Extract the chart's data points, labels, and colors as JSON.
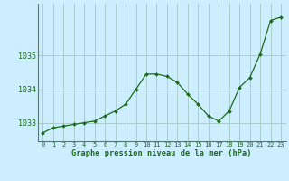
{
  "x": [
    0,
    1,
    2,
    3,
    4,
    5,
    6,
    7,
    8,
    9,
    10,
    11,
    12,
    13,
    14,
    15,
    16,
    17,
    18,
    19,
    20,
    21,
    22,
    23
  ],
  "y": [
    1032.7,
    1032.85,
    1032.9,
    1032.95,
    1033.0,
    1033.05,
    1033.2,
    1033.35,
    1033.55,
    1034.0,
    1034.45,
    1034.45,
    1034.38,
    1034.2,
    1033.85,
    1033.55,
    1033.2,
    1033.05,
    1033.35,
    1034.05,
    1034.35,
    1035.05,
    1036.05,
    1036.15
  ],
  "line_color": "#1a6b1a",
  "marker_color": "#1a6b1a",
  "bg_color": "#cceeff",
  "grid_color": "#aacccc",
  "xlabel": "Graphe pression niveau de la mer (hPa)",
  "xlabel_color": "#1a6b1a",
  "tick_color": "#1a6b1a",
  "yticks": [
    1033,
    1034,
    1035
  ],
  "ylim": [
    1032.45,
    1036.55
  ],
  "xlim": [
    -0.5,
    23.5
  ],
  "xticks": [
    0,
    1,
    2,
    3,
    4,
    5,
    6,
    7,
    8,
    9,
    10,
    11,
    12,
    13,
    14,
    15,
    16,
    17,
    18,
    19,
    20,
    21,
    22,
    23
  ],
  "xtick_labels": [
    "0",
    "1",
    "2",
    "3",
    "4",
    "5",
    "6",
    "7",
    "8",
    "9",
    "10",
    "11",
    "12",
    "13",
    "14",
    "15",
    "16",
    "17",
    "18",
    "19",
    "20",
    "21",
    "22",
    "23"
  ],
  "spine_color": "#557777"
}
